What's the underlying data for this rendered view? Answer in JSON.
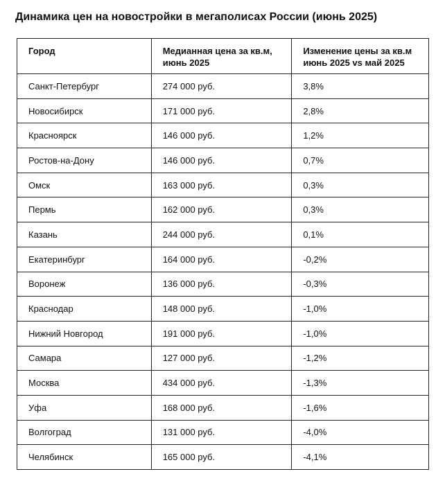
{
  "header": {
    "title": "Динамика цен на новостройки в мегаполисах России (июнь 2025)"
  },
  "table": {
    "columns": [
      "Город",
      "Медианная цена за кв.м, июнь 2025",
      "Изменение цены за кв.м июнь 2025 vs май 2025"
    ],
    "rows": [
      [
        "Санкт-Петербург",
        "274 000 руб.",
        "3,8%"
      ],
      [
        "Новосибирск",
        "171 000 руб.",
        "2,8%"
      ],
      [
        "Красноярск",
        "146 000 руб.",
        "1,2%"
      ],
      [
        "Ростов-на-Дону",
        "146 000 руб.",
        "0,7%"
      ],
      [
        "Омск",
        "163 000 руб.",
        "0,3%"
      ],
      [
        "Пермь",
        "162 000 руб.",
        "0,3%"
      ],
      [
        "Казань",
        "244 000 руб.",
        "0,1%"
      ],
      [
        "Екатеринбург",
        "164 000 руб.",
        "-0,2%"
      ],
      [
        "Воронеж",
        "136 000 руб.",
        "-0,3%"
      ],
      [
        "Краснодар",
        "148 000 руб.",
        "-1,0%"
      ],
      [
        "Нижний Новгород",
        "191 000 руб.",
        "-1,0%"
      ],
      [
        "Самара",
        "127 000 руб.",
        "-1,2%"
      ],
      [
        "Москва",
        "434 000 руб.",
        "-1,3%"
      ],
      [
        "Уфа",
        "168 000 руб.",
        "-1,6%"
      ],
      [
        "Волгоград",
        "131 000 руб.",
        "-4,0%"
      ],
      [
        "Челябинск",
        "165 000 руб.",
        "-4,1%"
      ]
    ]
  }
}
